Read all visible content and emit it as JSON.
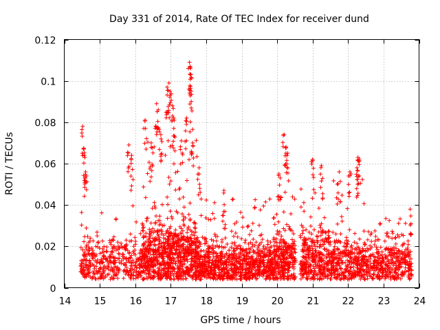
{
  "chart_data": {
    "type": "scatter",
    "title": "Day 331 of 2014, Rate Of TEC Index for receiver dund",
    "xlabel": "GPS time / hours",
    "ylabel": "ROTI / TECUs",
    "xlim": [
      14,
      24
    ],
    "ylim": [
      0,
      0.12
    ],
    "x_ticks": [
      14,
      15,
      16,
      17,
      18,
      19,
      20,
      21,
      22,
      23,
      24
    ],
    "y_ticks": [
      0,
      0.02,
      0.04,
      0.06,
      0.08,
      0.1,
      0.12
    ],
    "x_tick_labels": [
      "14",
      "15",
      "16",
      "17",
      "18",
      "19",
      "20",
      "21",
      "22",
      "23",
      "24"
    ],
    "y_tick_labels": [
      "0",
      "0.02",
      "0.04",
      "0.06",
      "0.08",
      "0.1",
      "0.12"
    ],
    "grid": true,
    "marker": "+",
    "marker_color": "#ff0000",
    "data_gaps_hours": [
      [
        20.52,
        20.65
      ]
    ],
    "x_range_observed": [
      14.45,
      23.8
    ],
    "series": [
      {
        "name": "ROTI",
        "color": "#ff0000",
        "notable_points": [
          {
            "x": 14.52,
            "y": 0.078
          },
          {
            "x": 14.55,
            "y": 0.067
          },
          {
            "x": 14.58,
            "y": 0.063
          },
          {
            "x": 14.6,
            "y": 0.056
          },
          {
            "x": 15.82,
            "y": 0.069
          },
          {
            "x": 15.9,
            "y": 0.064
          },
          {
            "x": 16.28,
            "y": 0.081
          },
          {
            "x": 16.45,
            "y": 0.07
          },
          {
            "x": 16.6,
            "y": 0.089
          },
          {
            "x": 16.65,
            "y": 0.086
          },
          {
            "x": 16.72,
            "y": 0.074
          },
          {
            "x": 16.9,
            "y": 0.097
          },
          {
            "x": 16.95,
            "y": 0.099
          },
          {
            "x": 16.98,
            "y": 0.095
          },
          {
            "x": 17.05,
            "y": 0.088
          },
          {
            "x": 17.1,
            "y": 0.081
          },
          {
            "x": 17.3,
            "y": 0.071
          },
          {
            "x": 17.45,
            "y": 0.082
          },
          {
            "x": 17.53,
            "y": 0.109
          },
          {
            "x": 17.55,
            "y": 0.107
          },
          {
            "x": 17.57,
            "y": 0.103
          },
          {
            "x": 17.58,
            "y": 0.09
          },
          {
            "x": 17.62,
            "y": 0.07
          },
          {
            "x": 17.8,
            "y": 0.058
          },
          {
            "x": 18.5,
            "y": 0.047
          },
          {
            "x": 20.05,
            "y": 0.055
          },
          {
            "x": 20.2,
            "y": 0.074
          },
          {
            "x": 20.25,
            "y": 0.068
          },
          {
            "x": 20.3,
            "y": 0.065
          },
          {
            "x": 21.0,
            "y": 0.062
          },
          {
            "x": 21.25,
            "y": 0.059
          },
          {
            "x": 21.75,
            "y": 0.056
          },
          {
            "x": 22.05,
            "y": 0.056
          },
          {
            "x": 22.28,
            "y": 0.063
          },
          {
            "x": 22.3,
            "y": 0.061
          },
          {
            "x": 22.25,
            "y": 0.058
          },
          {
            "x": 23.75,
            "y": 0.038
          }
        ],
        "regimes": [
          {
            "from": 14.45,
            "to": 15.8,
            "base": 0.012,
            "spread": 0.007,
            "upper": 0.038,
            "density": 22
          },
          {
            "from": 15.8,
            "to": 16.2,
            "base": 0.012,
            "spread": 0.008,
            "upper": 0.065,
            "density": 25
          },
          {
            "from": 16.2,
            "to": 17.8,
            "base": 0.015,
            "spread": 0.01,
            "upper": 0.075,
            "density": 55
          },
          {
            "from": 17.8,
            "to": 19.9,
            "base": 0.011,
            "spread": 0.007,
            "upper": 0.045,
            "density": 40
          },
          {
            "from": 19.9,
            "to": 20.52,
            "base": 0.013,
            "spread": 0.008,
            "upper": 0.05,
            "density": 45
          },
          {
            "from": 20.65,
            "to": 21.5,
            "base": 0.013,
            "spread": 0.009,
            "upper": 0.05,
            "density": 40
          },
          {
            "from": 21.5,
            "to": 22.45,
            "base": 0.012,
            "spread": 0.008,
            "upper": 0.055,
            "density": 35
          },
          {
            "from": 22.45,
            "to": 23.8,
            "base": 0.011,
            "spread": 0.007,
            "upper": 0.035,
            "density": 30
          }
        ]
      }
    ]
  }
}
